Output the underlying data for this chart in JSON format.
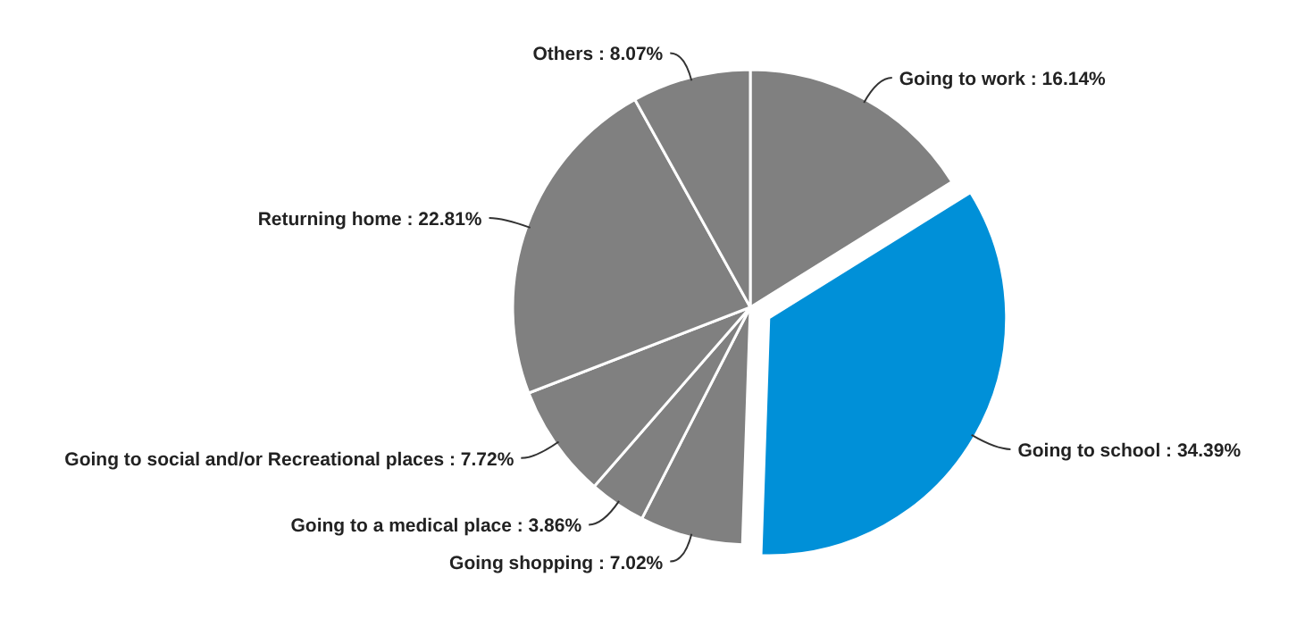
{
  "chart_data": {
    "type": "pie",
    "categories": [
      "Going to work",
      "Going to school",
      "Going shopping",
      "Going to a medical place",
      "Going to social and/or Recreational places",
      "Returning home",
      "Others"
    ],
    "values": [
      16.14,
      34.39,
      7.02,
      3.86,
      7.72,
      22.81,
      8.07
    ],
    "value_labels": [
      "16.14%",
      "34.39%",
      "7.02%",
      "3.86%",
      "7.72%",
      "22.81%",
      "8.07%"
    ],
    "colors": [
      "#808080",
      "#0090d8",
      "#808080",
      "#808080",
      "#808080",
      "#808080",
      "#808080"
    ],
    "legend": false
  }
}
